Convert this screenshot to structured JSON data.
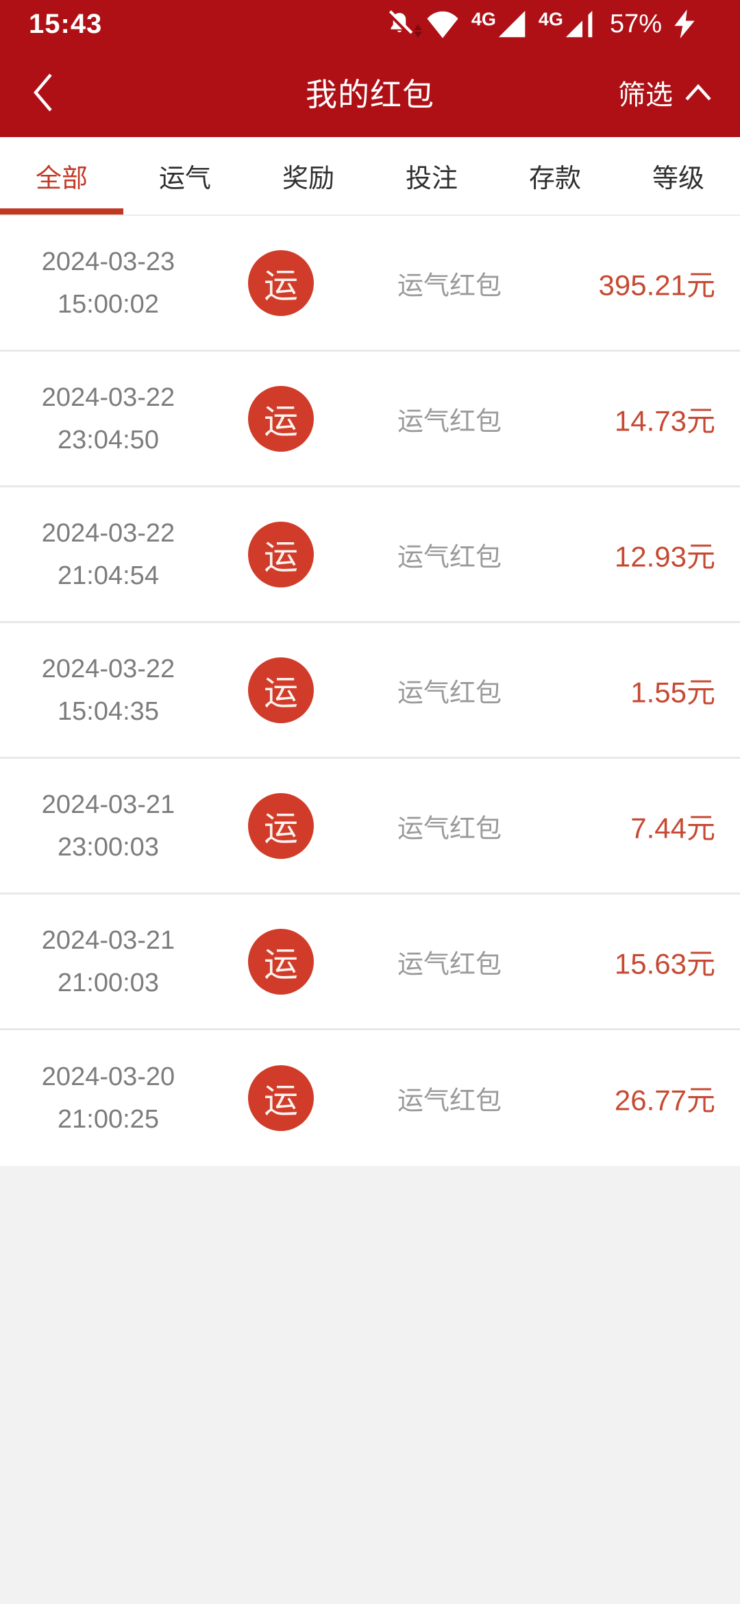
{
  "status_bar": {
    "time": "15:43",
    "battery": "57%",
    "icons": [
      "notifications-off-icon",
      "network-activity-arrows",
      "wifi-icon",
      "cellular-4g-primary-icon",
      "cellular-4g-secondary-icon",
      "charging-bolt-icon"
    ],
    "sim1_label": "4G",
    "sim2_label": "4G"
  },
  "header": {
    "title": "我的红包",
    "filter_label": "筛选"
  },
  "tabs": [
    {
      "label": "全部",
      "active": true
    },
    {
      "label": "运气",
      "active": false
    },
    {
      "label": "奖励",
      "active": false
    },
    {
      "label": "投注",
      "active": false
    },
    {
      "label": "存款",
      "active": false
    },
    {
      "label": "等级",
      "active": false
    }
  ],
  "rows": [
    {
      "date": "2024-03-23",
      "time": "15:00:02",
      "badge": "运",
      "label": "运气红包",
      "amount": "395.21元"
    },
    {
      "date": "2024-03-22",
      "time": "23:04:50",
      "badge": "运",
      "label": "运气红包",
      "amount": "14.73元"
    },
    {
      "date": "2024-03-22",
      "time": "21:04:54",
      "badge": "运",
      "label": "运气红包",
      "amount": "12.93元"
    },
    {
      "date": "2024-03-22",
      "time": "15:04:35",
      "badge": "运",
      "label": "运气红包",
      "amount": "1.55元"
    },
    {
      "date": "2024-03-21",
      "time": "23:00:03",
      "badge": "运",
      "label": "运气红包",
      "amount": "7.44元"
    },
    {
      "date": "2024-03-21",
      "time": "21:00:03",
      "badge": "运",
      "label": "运气红包",
      "amount": "15.63元"
    },
    {
      "date": "2024-03-20",
      "time": "21:00:25",
      "badge": "运",
      "label": "运气红包",
      "amount": "26.77元"
    }
  ],
  "colors": {
    "header_red": "#ae1016",
    "badge_red": "#d03c29",
    "amount_red": "#c64a33",
    "tab_active_red": "#c23a27",
    "date_gray": "#7c7c7c",
    "label_gray": "#9a9a9a",
    "background_gray": "#f1f2f1"
  }
}
